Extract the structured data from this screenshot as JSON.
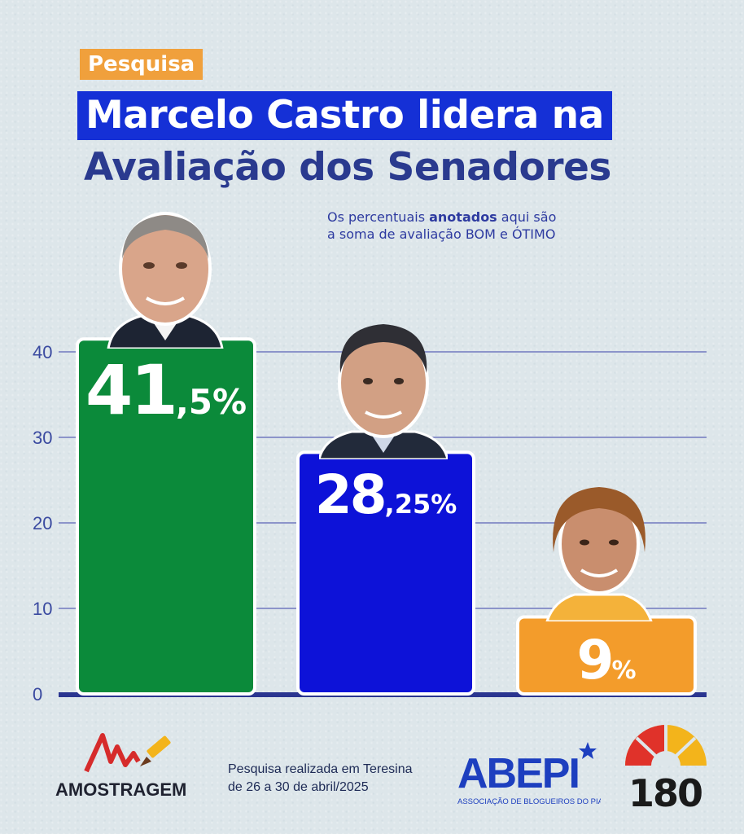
{
  "header": {
    "tag": "Pesquisa",
    "title_line1": "Marcelo Castro lidera na",
    "title_line2": "Avaliação dos Senadores"
  },
  "note": {
    "part1": "Os percentuais ",
    "bold": "anotados",
    "part2": " aqui são",
    "line2": "a soma de avaliação BOM e ÓTIMO"
  },
  "chart_data": {
    "type": "bar",
    "categories": [
      "",
      "",
      ""
    ],
    "values": [
      41.5,
      28.25,
      9
    ],
    "labels": [
      {
        "int": "41",
        "dec": ",5%"
      },
      {
        "int": "28",
        "dec": ",25%"
      },
      {
        "int": "9",
        "dec": "%"
      }
    ],
    "colors": [
      "#0b8a3a",
      "#0d12d8",
      "#f39c2b"
    ],
    "ylim": [
      0,
      40
    ],
    "yticks": [
      "0",
      "10",
      "20",
      "30",
      "40"
    ],
    "grid": true,
    "title": "",
    "xlabel": "",
    "ylabel": ""
  },
  "footer": {
    "brand_left": "AMOSTRAGEM",
    "text_line1": "Pesquisa realizada em Teresina",
    "text_line2": "de 26 a 30 de abril/2025",
    "brand_mid": "ABEPI",
    "brand_mid_sub": "ASSOCIAÇÃO DE BLOGUEIROS DO PIAUÍ",
    "brand_right": "180"
  },
  "colors": {
    "accent_orange": "#f0a03c",
    "title_blue": "#1530d6",
    "navy": "#2a3a8f"
  }
}
